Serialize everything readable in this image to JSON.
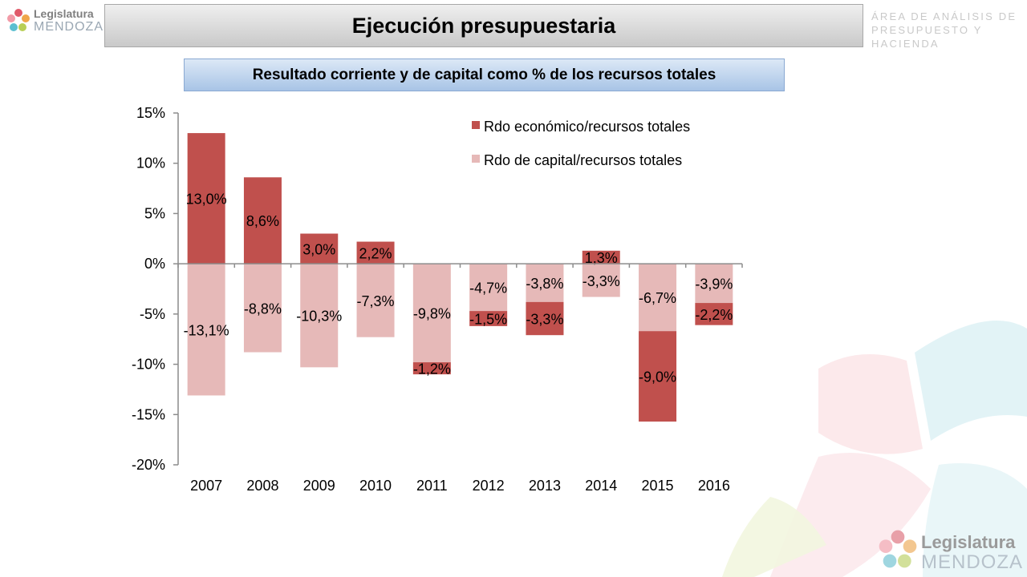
{
  "header": {
    "logo_line1": "Legislatura",
    "logo_line2": "MENDOZA",
    "title": "Ejecución presupuestaria",
    "area_line1": "ÁREA DE ANÁLISIS DE",
    "area_line2": "PRESUPUESTO Y HACIENDA"
  },
  "footer": {
    "logo_line1": "Legislatura",
    "logo_line2": "MENDOZA"
  },
  "chart_data": {
    "type": "bar",
    "stacked": true,
    "title": "Resultado corriente y de capital como % de los recursos totales",
    "categories": [
      "2007",
      "2008",
      "2009",
      "2010",
      "2011",
      "2012",
      "2013",
      "2014",
      "2015",
      "2016"
    ],
    "series": [
      {
        "name": "Rdo económico/recursos totales",
        "color": "#c0504d",
        "values": [
          13.0,
          8.6,
          3.0,
          2.2,
          -1.2,
          -1.5,
          -3.3,
          1.3,
          -9.0,
          -2.2
        ],
        "labels": [
          "13,0%",
          "8,6%",
          "3,0%",
          "2,2%",
          "-1,2%",
          "-1,5%",
          "-3,3%",
          "1,3%",
          "-9,0%",
          "-2,2%"
        ]
      },
      {
        "name": "Rdo de capital/recursos totales",
        "color": "#e6b9b8",
        "values": [
          -13.1,
          -8.8,
          -10.3,
          -7.3,
          -9.8,
          -4.7,
          -3.8,
          -3.3,
          -6.7,
          -3.9
        ],
        "labels": [
          "-13,1%",
          "-8,8%",
          "-10,3%",
          "-7,3%",
          "-9,8%",
          "-4,7%",
          "-3,8%",
          "-3,3%",
          "-6,7%",
          "-3,9%"
        ]
      }
    ],
    "ylim": [
      -20,
      15
    ],
    "yticks": [
      15,
      10,
      5,
      0,
      -5,
      -10,
      -15,
      -20
    ],
    "ytick_labels": [
      "15%",
      "10%",
      "5%",
      "0%",
      "-5%",
      "-10%",
      "-15%",
      "-20%"
    ],
    "legend_position": "top-right",
    "grid": false
  }
}
